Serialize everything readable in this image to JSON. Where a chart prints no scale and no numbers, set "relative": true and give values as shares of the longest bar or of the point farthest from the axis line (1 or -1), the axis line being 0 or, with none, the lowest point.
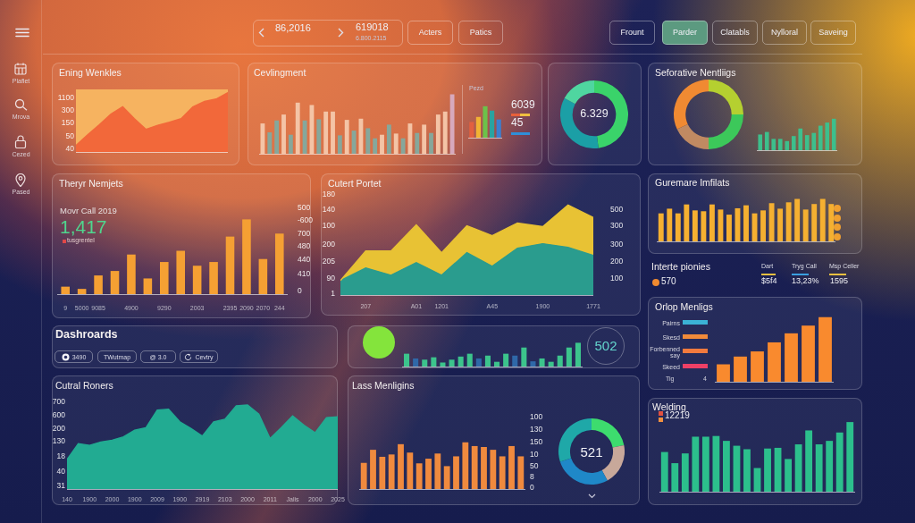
{
  "chart_data": [
    {
      "type": "other",
      "annotations": [
        "86,2016",
        "619018",
        "6.800.2115",
        "Acters",
        "Patics",
        "Frount",
        "Parder",
        "Clatabls",
        "Nylloral",
        "Saveing"
      ]
    },
    {
      "type": "other",
      "annotations": [
        "Plaflet",
        "Mrova",
        "Cezed",
        "Pased"
      ]
    },
    {
      "type": "area",
      "title": "Ening Wenkles",
      "categories": [
        null,
        null,
        null,
        null,
        null,
        null,
        null,
        null,
        null,
        null,
        null,
        null,
        null,
        null
      ],
      "values": [
        0.11,
        0.29,
        0.46,
        0.64,
        0.76,
        0.56,
        0.38,
        0.45,
        0.5,
        0.56,
        0.76,
        0.85,
        0.89,
        1.0
      ],
      "color": "#f2683a",
      "relative": true,
      "annotations": [
        "1100",
        "300",
        "150",
        "50",
        "40"
      ]
    },
    {
      "type": "bar",
      "title": "Cevlingment",
      "categories": [
        null,
        null,
        null,
        null,
        null,
        null,
        null,
        null,
        null,
        null,
        null,
        null,
        null,
        null,
        null,
        null,
        null,
        null,
        null,
        null,
        null,
        null,
        null,
        null,
        null,
        null,
        null,
        null
      ],
      "values": [
        0.51,
        0.36,
        0.56,
        0.66,
        0.32,
        0.86,
        0.56,
        0.82,
        0.58,
        0.71,
        0.71,
        0.31,
        0.57,
        0.39,
        0.59,
        0.43,
        0.26,
        0.32,
        0.49,
        0.34,
        0.26,
        0.51,
        0.35,
        0.49,
        0.35,
        0.66,
        0.71,
        1.0
      ],
      "colors": [
        "#f4c4a6",
        "#86a79b",
        "#86a79b",
        "#f4c4a6",
        "#86a79b",
        "#f4c4a6",
        "#86a79b",
        "#f4c4a6",
        "#86a79b",
        "#f4c4a6",
        "#f4c4a6",
        "#86a79b",
        "#f4c4a6",
        "#86a79b",
        "#f4c4a6",
        "#86a79b",
        "#86a79b",
        "#f4c4a6",
        "#86a79b",
        "#f4c4a6",
        "#86a79b",
        "#f4c4a6",
        "#86a79b",
        "#f4c4a6",
        "#86a79b",
        "#f4c4a6",
        "#f4c4a6",
        "#d7a9bd"
      ],
      "relative": true
    },
    {
      "type": "bar",
      "categories": [
        null,
        null,
        null,
        null,
        null
      ],
      "values": [
        0.5,
        0.66,
        1.0,
        0.86,
        0.58
      ],
      "colors": [
        "#e2603f",
        "#f2b233",
        "#6cc24a",
        "#2aa3a0",
        "#3b7fd0"
      ],
      "relative": true,
      "annotations": [
        "Pezd",
        "6039",
        "45"
      ]
    },
    {
      "type": "donut",
      "categories": [
        null,
        null,
        null
      ],
      "values": [
        48,
        35,
        17
      ],
      "colors": [
        "#3ad36a",
        "#1b9fa6",
        "#4fd6a0"
      ],
      "annotations": [
        "6.329"
      ]
    },
    {
      "type": "donut",
      "title": "Seforative Nentliigs",
      "categories": [
        null,
        null,
        null,
        null
      ],
      "values": [
        25,
        25,
        18,
        32
      ],
      "colors": [
        "#b5d030",
        "#3cc85a",
        "#c08a62",
        "#f08a32"
      ]
    },
    {
      "type": "bar",
      "categories": [
        null,
        null,
        null,
        null,
        null,
        null,
        null,
        null,
        null,
        null,
        null,
        null
      ],
      "values": [
        0.5,
        0.58,
        0.36,
        0.36,
        0.29,
        0.45,
        0.69,
        0.48,
        0.55,
        0.78,
        0.88,
        1.0
      ],
      "color": "#3dbf8c",
      "relative": true
    },
    {
      "type": "bar",
      "title": "Theryr Nemjets",
      "categories": [
        "9",
        "5000",
        "9085",
        null,
        "4900",
        null,
        "9290",
        null,
        "2003",
        null,
        "2395",
        "2090",
        "2070",
        "244"
      ],
      "values": [
        0.1,
        0.07,
        0.25,
        0.31,
        0.53,
        0.21,
        0.43,
        0.58,
        0.38,
        0.43,
        0.77,
        1.0,
        0.47,
        0.81
      ],
      "color": "#f5a033",
      "relative": true,
      "annotations": [
        "Movr Call 2019",
        "1,417",
        "tusgrentel",
        "500",
        "-600",
        "700",
        "480",
        "440",
        "410",
        "0"
      ]
    },
    {
      "type": "area",
      "title": "Cutert Portet",
      "stacked": true,
      "categories": [
        null,
        "207",
        null,
        "A01",
        "1201",
        null,
        "A45",
        null,
        "1900",
        null,
        "1771"
      ],
      "series": [
        {
          "color": "#2a9c8e",
          "values": [
            0.16,
            0.3,
            0.22,
            0.36,
            0.22,
            0.47,
            0.32,
            0.52,
            0.57,
            0.53,
            0.44
          ]
        },
        {
          "color": "#e8c234",
          "values": [
            0,
            0.19,
            0.27,
            0.42,
            0.25,
            0.3,
            0.34,
            0.28,
            0.19,
            0.47,
            0.42
          ]
        }
      ],
      "relative": true,
      "annotations": [
        "180",
        "140",
        "100",
        "200",
        "205",
        "90",
        "1",
        "500",
        "300",
        "300",
        "200",
        "100"
      ]
    },
    {
      "type": "bar",
      "title": "Guremare Imfilats",
      "categories": [
        null,
        null,
        null,
        null,
        null,
        null,
        null,
        null,
        null,
        null,
        null,
        null,
        null,
        null,
        null,
        null,
        null,
        null,
        null,
        null,
        null
      ],
      "values": [
        0.66,
        0.77,
        0.66,
        0.87,
        0.73,
        0.71,
        0.87,
        0.75,
        0.63,
        0.78,
        0.85,
        0.66,
        0.73,
        0.9,
        0.77,
        0.92,
        1.0,
        0.75,
        0.88,
        1.0,
        0.88
      ],
      "color": "#f5b031",
      "relative": true
    },
    {
      "type": "other",
      "title": "Interte pionies",
      "annotations": [
        "570",
        "Dart",
        "Tryg Call",
        "Msp Celler",
        "$5f4",
        "13,23%",
        "1595"
      ]
    },
    {
      "type": "other",
      "title": "Dashroards",
      "annotations": [
        "3490",
        "TWutmap",
        "@ 3.0",
        "Cevtry"
      ]
    },
    {
      "type": "bar",
      "categories": [
        null,
        null,
        null,
        null,
        null,
        null,
        null,
        null,
        null,
        null,
        null,
        null,
        null,
        null,
        null,
        null,
        null,
        null,
        null,
        null
      ],
      "values": [
        0.54,
        0.34,
        0.29,
        0.39,
        0.17,
        0.29,
        0.42,
        0.54,
        0.34,
        0.46,
        0.2,
        0.54,
        0.46,
        0.8,
        0.22,
        0.34,
        0.2,
        0.46,
        0.8,
        1.0
      ],
      "colors": [
        "#3cc48c",
        "#2f68a8",
        "#3cc48c",
        "#3cc48c",
        "#3cc48c",
        "#3cc48c",
        "#3cc48c",
        "#3cc48c",
        "#2f68a8",
        "#3cc48c",
        "#3cc48c",
        "#3cc48c",
        "#2f68a8",
        "#3cc48c",
        "#2f68a8",
        "#3cc48c",
        "#3cc48c",
        "#3cc48c",
        "#3cc48c",
        "#3cc48c"
      ],
      "relative": true,
      "annotations": [
        "502"
      ]
    },
    {
      "type": "bar",
      "title": "Orlop Menligs",
      "categories": [
        null,
        null,
        null,
        null,
        null,
        null,
        null
      ],
      "values": [
        0.27,
        0.39,
        0.47,
        0.61,
        0.75,
        0.87,
        1.0
      ],
      "color": "#f98a2e",
      "relative": true,
      "annotations": [
        "Pairns",
        "Skesd",
        "Forbenned say",
        "Skeed",
        "Tig",
        "4"
      ]
    },
    {
      "type": "area",
      "title": "Cutral Roners",
      "categories": [
        "140",
        null,
        "1900",
        null,
        "2000",
        null,
        "1900",
        null,
        "2009",
        null,
        "1900",
        null,
        "2919",
        null,
        "2103",
        null,
        "2000",
        null,
        "2011",
        null,
        "Jalis",
        null,
        "2000",
        null,
        "2025"
      ],
      "values": [
        0.35,
        0.54,
        0.52,
        0.56,
        0.58,
        0.62,
        0.7,
        0.73,
        0.94,
        0.95,
        0.8,
        0.72,
        0.63,
        0.8,
        0.83,
        0.99,
        1.0,
        0.89,
        0.6,
        0.73,
        0.87,
        0.76,
        0.67,
        0.85,
        0.86
      ],
      "color": "#22ab92",
      "relative": true,
      "annotations": [
        "700",
        "600",
        "200",
        "130",
        "18",
        "40",
        "31"
      ]
    },
    {
      "type": "bar",
      "title": "Lass Menligins",
      "categories": [
        null,
        null,
        null,
        null,
        null,
        null,
        null,
        null,
        null,
        null,
        null,
        null,
        null,
        null,
        null,
        null,
        null,
        null
      ],
      "values": [
        0.56,
        0.84,
        0.69,
        0.74,
        0.96,
        0.78,
        0.55,
        0.65,
        0.76,
        0.49,
        0.7,
        1.0,
        0.92,
        0.9,
        0.84,
        0.7,
        0.92,
        0.7
      ],
      "color": "#f08a3e",
      "relative": true,
      "annotations": [
        "100",
        "130",
        "150",
        "10",
        "50",
        "8",
        "0"
      ]
    },
    {
      "type": "donut",
      "categories": [
        null,
        null,
        null,
        null
      ],
      "values": [
        22,
        20,
        28,
        30
      ],
      "colors": [
        "#3ddc6e",
        "#c8a89a",
        "#1f88c8",
        "#1fa8a8"
      ],
      "annotations": [
        "521"
      ]
    },
    {
      "type": "bar",
      "title": "Welding",
      "categories": [
        null,
        null,
        null,
        null,
        null,
        null,
        null,
        null,
        null,
        null,
        null,
        null,
        null,
        null,
        null,
        null,
        null,
        null,
        null
      ],
      "values": [
        0.57,
        0.41,
        0.55,
        0.79,
        0.79,
        0.8,
        0.73,
        0.66,
        0.61,
        0.34,
        0.62,
        0.63,
        0.47,
        0.68,
        0.88,
        0.68,
        0.73,
        0.85,
        1.0
      ],
      "color": "#2cbf8c",
      "relative": true,
      "annotations": [
        "12219"
      ]
    }
  ]
}
